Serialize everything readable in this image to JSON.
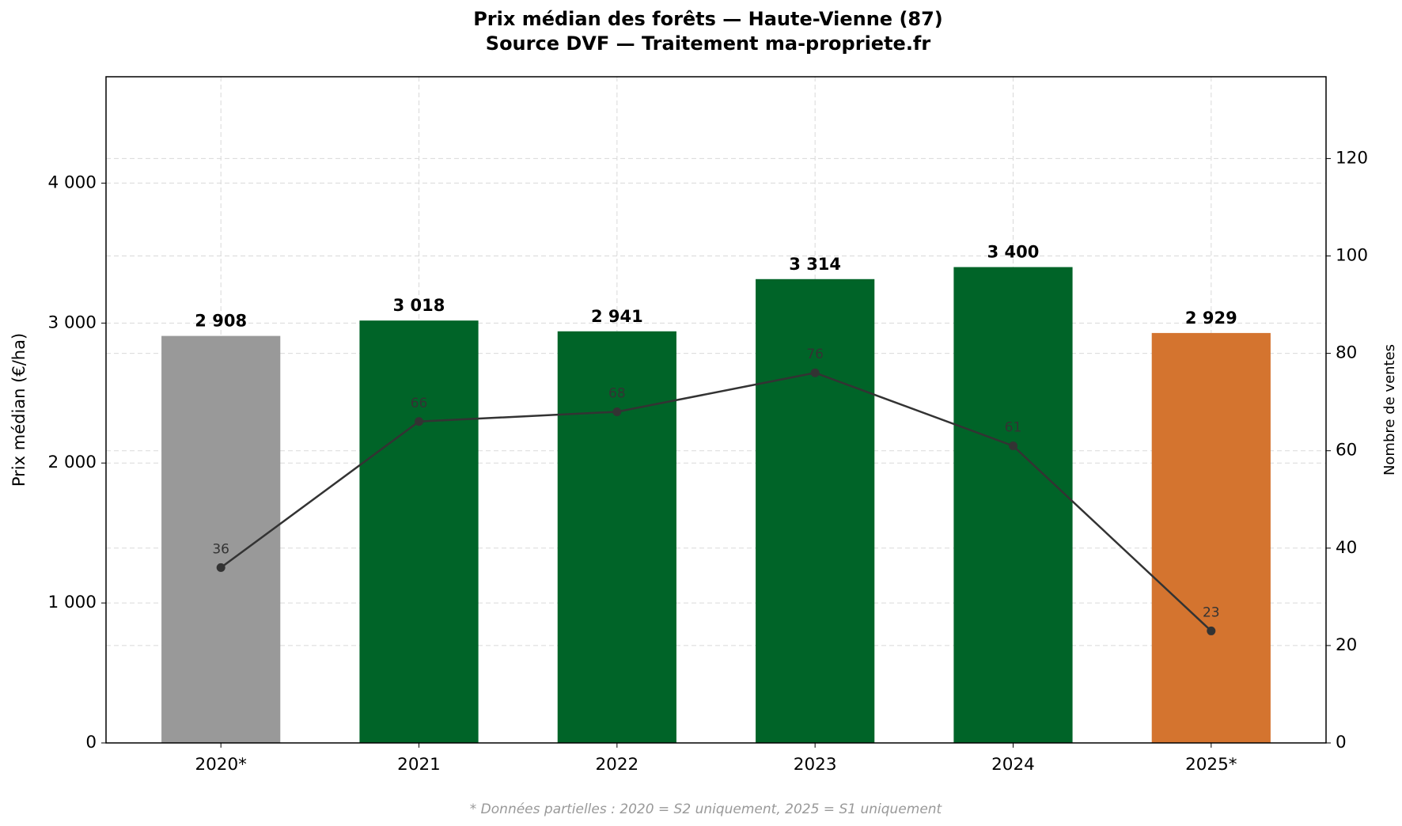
{
  "chart_data": {
    "type": "bar",
    "title": "Prix médian des forêts — Haute-Vienne (87)",
    "subtitle": "Source DVF — Traitement ma-propriete.fr",
    "note": "* Données partielles : 2020 = S2 uniquement, 2025 = S1 uniquement",
    "ylabel": "Prix médian (€/ha)",
    "y2label": "Nombre de ventes",
    "categories": [
      "2020*",
      "2021",
      "2022",
      "2023",
      "2024",
      "2025*"
    ],
    "series": [
      {
        "type": "bar",
        "colors": [
          "#999999",
          "#006428",
          "#006428",
          "#006428",
          "#006428",
          "#d4742f"
        ],
        "values": [
          2908,
          3018,
          2941,
          3314,
          3400,
          2929
        ],
        "value_labels": [
          "2 908",
          "3 018",
          "2 941",
          "3 314",
          "3 400",
          "2 929"
        ]
      },
      {
        "type": "line",
        "color": "#333333",
        "axis": "y2",
        "values": [
          36,
          66,
          68,
          76,
          61,
          23
        ]
      }
    ],
    "ylim": [
      0,
      4760
    ],
    "yticks": [
      0,
      {
        "value": 1000,
        "label": "1 000"
      },
      {
        "value": 2000,
        "label": "2 000"
      },
      {
        "value": 3000,
        "label": "3 000"
      },
      {
        "value": 4000,
        "label": "4 000"
      }
    ],
    "y2lim": [
      0,
      136.8
    ],
    "y2ticks": [
      0,
      20,
      40,
      60,
      80,
      100,
      120
    ],
    "grid": true
  }
}
